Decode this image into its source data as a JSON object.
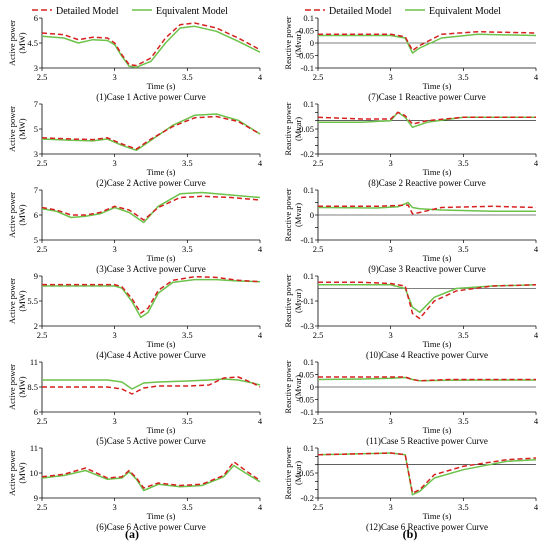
{
  "legend": {
    "detailed": "Detailed Model",
    "equivalent": "Equivalent Model",
    "detailed_color": "#d62020",
    "equivalent_color": "#6cc24a"
  },
  "columns": {
    "left": "(a)",
    "right": "(b)"
  },
  "chart_data": [
    {
      "type": "line",
      "caption": "(1)Case 1 Active power Curve",
      "ylabel": [
        "Active power",
        "(MW)"
      ],
      "xlabel": "Time (s)",
      "xlim": [
        2.5,
        4
      ],
      "xticks": [
        2.5,
        3,
        3.5,
        4
      ],
      "ylim": [
        3,
        6
      ],
      "yticks": [
        3,
        4.5,
        6
      ],
      "ytick_labels": [
        "3",
        "4.5",
        "6"
      ],
      "x": [
        2.5,
        2.65,
        2.75,
        2.85,
        2.95,
        3.0,
        3.05,
        3.1,
        3.15,
        3.25,
        3.35,
        3.45,
        3.55,
        3.7,
        3.85,
        4.0
      ],
      "series": [
        {
          "name": "Detailed Model",
          "values": [
            5.1,
            5.0,
            4.7,
            4.85,
            4.8,
            4.5,
            3.8,
            3.2,
            3.15,
            3.6,
            4.8,
            5.6,
            5.7,
            5.4,
            4.8,
            4.1
          ]
        },
        {
          "name": "Equivalent Model",
          "values": [
            4.9,
            4.8,
            4.5,
            4.7,
            4.65,
            4.4,
            3.7,
            3.1,
            3.05,
            3.4,
            4.5,
            5.4,
            5.5,
            5.2,
            4.6,
            3.95
          ]
        }
      ]
    },
    {
      "type": "line",
      "caption": "(2)Case 2 Active power Curve",
      "ylabel": [
        "Active power",
        "(MW)"
      ],
      "xlabel": "Time (s)",
      "xlim": [
        2.5,
        4
      ],
      "xticks": [
        2.5,
        3,
        3.5,
        4
      ],
      "ylim": [
        3,
        7
      ],
      "yticks": [
        3,
        5,
        7
      ],
      "ytick_labels": [
        "3",
        "5",
        "7"
      ],
      "x": [
        2.5,
        2.7,
        2.85,
        2.95,
        3.05,
        3.15,
        3.25,
        3.4,
        3.55,
        3.7,
        3.85,
        4.0
      ],
      "series": [
        {
          "name": "Detailed Model",
          "values": [
            4.3,
            4.2,
            4.15,
            4.3,
            3.8,
            3.4,
            4.2,
            5.2,
            5.9,
            6.0,
            5.6,
            4.6
          ]
        },
        {
          "name": "Equivalent Model",
          "values": [
            4.2,
            4.1,
            4.05,
            4.2,
            3.7,
            3.3,
            4.1,
            5.3,
            6.1,
            6.2,
            5.7,
            4.6
          ]
        }
      ]
    },
    {
      "type": "line",
      "caption": "(3)Case 3 Active power Curve",
      "ylabel": [
        "Active power",
        "(MW)"
      ],
      "xlabel": "Time (s)",
      "xlim": [
        2.5,
        4
      ],
      "xticks": [
        2.5,
        3,
        3.5,
        4
      ],
      "ylim": [
        5,
        7
      ],
      "yticks": [
        5,
        6,
        7
      ],
      "ytick_labels": [
        "5",
        "6",
        "7"
      ],
      "x": [
        2.5,
        2.6,
        2.7,
        2.8,
        2.9,
        3.0,
        3.1,
        3.2,
        3.3,
        3.45,
        3.6,
        3.8,
        4.0
      ],
      "series": [
        {
          "name": "Detailed Model",
          "values": [
            6.3,
            6.2,
            6.0,
            6.0,
            6.1,
            6.35,
            6.2,
            5.8,
            6.3,
            6.7,
            6.75,
            6.7,
            6.6
          ]
        },
        {
          "name": "Equivalent Model",
          "values": [
            6.25,
            6.15,
            5.9,
            5.95,
            6.05,
            6.3,
            6.1,
            5.7,
            6.35,
            6.85,
            6.9,
            6.8,
            6.7
          ]
        }
      ]
    },
    {
      "type": "line",
      "caption": "(4)Case 4 Active power Curve",
      "ylabel": [
        "Active power",
        "(MW)"
      ],
      "xlabel": "Time (s)",
      "xlim": [
        2.5,
        4
      ],
      "xticks": [
        2.5,
        3,
        3.5,
        4
      ],
      "ylim": [
        2,
        9
      ],
      "yticks": [
        2,
        5.5,
        9
      ],
      "ytick_labels": [
        "2",
        "5.5",
        "9"
      ],
      "x": [
        2.5,
        2.8,
        3.0,
        3.05,
        3.12,
        3.18,
        3.23,
        3.3,
        3.4,
        3.55,
        3.7,
        3.85,
        4.0
      ],
      "series": [
        {
          "name": "Detailed Model",
          "values": [
            7.8,
            7.8,
            7.8,
            7.5,
            5.8,
            3.8,
            4.5,
            7.0,
            8.4,
            8.9,
            8.8,
            8.4,
            8.2
          ]
        },
        {
          "name": "Equivalent Model",
          "values": [
            7.6,
            7.6,
            7.6,
            7.3,
            5.4,
            3.2,
            3.9,
            6.6,
            8.1,
            8.5,
            8.5,
            8.3,
            8.2
          ]
        }
      ]
    },
    {
      "type": "line",
      "caption": "(5)Case 5 Active power Curve",
      "ylabel": [
        "Active power",
        "(MW)"
      ],
      "xlabel": "Time (s)",
      "xlim": [
        2.5,
        4
      ],
      "xticks": [
        2.5,
        3,
        3.5,
        4
      ],
      "ylim": [
        6,
        11
      ],
      "yticks": [
        6,
        8.5,
        11
      ],
      "ytick_labels": [
        "6",
        "8.5",
        "11"
      ],
      "x": [
        2.5,
        2.75,
        2.95,
        3.05,
        3.12,
        3.2,
        3.3,
        3.5,
        3.65,
        3.75,
        3.85,
        3.95,
        4.0
      ],
      "series": [
        {
          "name": "Detailed Model",
          "values": [
            8.5,
            8.5,
            8.5,
            8.3,
            7.8,
            8.4,
            8.6,
            8.6,
            8.7,
            9.4,
            9.5,
            8.9,
            8.5
          ]
        },
        {
          "name": "Equivalent Model",
          "values": [
            9.2,
            9.2,
            9.2,
            9.0,
            8.3,
            8.9,
            9.0,
            9.1,
            9.2,
            9.3,
            9.2,
            8.9,
            8.7
          ]
        }
      ]
    },
    {
      "type": "line",
      "caption": "(6)Case 6 Active power Curve",
      "ylabel": [
        "Active power",
        "(MW)"
      ],
      "xlabel": "Time (s)",
      "xlim": [
        2.5,
        4
      ],
      "xticks": [
        2.5,
        3,
        3.5,
        4
      ],
      "ylim": [
        9,
        11
      ],
      "yticks": [
        9,
        10,
        11
      ],
      "ytick_labels": [
        "9",
        "10",
        "11"
      ],
      "x": [
        2.5,
        2.65,
        2.8,
        2.95,
        3.05,
        3.1,
        3.15,
        3.2,
        3.3,
        3.45,
        3.6,
        3.75,
        3.82,
        3.9,
        4.0
      ],
      "series": [
        {
          "name": "Detailed Model",
          "values": [
            9.85,
            9.95,
            10.2,
            9.8,
            9.85,
            10.1,
            9.8,
            9.4,
            9.6,
            9.5,
            9.55,
            9.9,
            10.45,
            10.1,
            9.7
          ]
        },
        {
          "name": "Equivalent Model",
          "values": [
            9.8,
            9.9,
            10.1,
            9.75,
            9.8,
            10.05,
            9.75,
            9.3,
            9.55,
            9.45,
            9.5,
            9.85,
            10.3,
            10.0,
            9.65
          ]
        }
      ]
    },
    {
      "type": "line",
      "caption": "(7)Case 1 Reactive power Curve",
      "ylabel": [
        "Reactive power",
        "(Mvar)"
      ],
      "xlabel": "Time (s)",
      "xlim": [
        2.5,
        4
      ],
      "xticks": [
        2.5,
        3,
        3.5,
        4
      ],
      "ylim": [
        -0.1,
        0.1
      ],
      "yticks": [
        -0.1,
        -0.05,
        0,
        0.05,
        0.1
      ],
      "ytick_labels": [
        "-0.1",
        "-0.05",
        "0",
        "0.05",
        "0.1"
      ],
      "x": [
        2.5,
        2.8,
        3.0,
        3.05,
        3.1,
        3.15,
        3.2,
        3.35,
        3.6,
        4.0
      ],
      "series": [
        {
          "name": "Detailed Model",
          "values": [
            0.035,
            0.035,
            0.035,
            0.03,
            0.025,
            -0.03,
            -0.01,
            0.035,
            0.045,
            0.04
          ]
        },
        {
          "name": "Equivalent Model",
          "values": [
            0.03,
            0.03,
            0.03,
            0.025,
            0.02,
            -0.04,
            -0.02,
            0.02,
            0.035,
            0.03
          ]
        }
      ]
    },
    {
      "type": "line",
      "caption": "(8)Case 2 Reactive power Curve",
      "ylabel": [
        "Reactive power",
        "(Mvar)"
      ],
      "xlabel": "Time (s)",
      "xlim": [
        2.5,
        4
      ],
      "xticks": [
        2.5,
        3,
        3.5,
        4
      ],
      "ylim": [
        -0.2,
        0.1
      ],
      "yticks": [
        -0.2,
        -0.15,
        -0.1,
        -0.05,
        0,
        0.05,
        0.1
      ],
      "ytick_labels": [
        "-0.2",
        "",
        "",
        "-0.05",
        "",
        "",
        "0.1"
      ],
      "x": [
        2.5,
        2.8,
        3.0,
        3.05,
        3.1,
        3.15,
        3.25,
        3.5,
        4.0
      ],
      "series": [
        {
          "name": "Detailed Model",
          "values": [
            0.02,
            0.01,
            0.01,
            0.05,
            0.03,
            -0.02,
            0.0,
            0.02,
            0.02
          ]
        },
        {
          "name": "Equivalent Model",
          "values": [
            -0.01,
            -0.01,
            0.0,
            0.05,
            0.02,
            -0.04,
            -0.01,
            0.02,
            0.02
          ]
        }
      ]
    },
    {
      "type": "line",
      "caption": "(9)Case 3 Reactive power Curve",
      "ylabel": [
        "Reactive power",
        "(Mvar)"
      ],
      "xlabel": "Time (s)",
      "xlim": [
        2.5,
        4
      ],
      "xticks": [
        2.5,
        3,
        3.5,
        4
      ],
      "ylim": [
        -0.1,
        0.1
      ],
      "yticks": [
        -0.1,
        -0.05,
        0,
        0.05,
        0.1
      ],
      "ytick_labels": [
        "-0.1",
        "",
        "0",
        "",
        "0.1"
      ],
      "x": [
        2.5,
        2.9,
        3.05,
        3.12,
        3.15,
        3.2,
        3.35,
        3.7,
        4.0
      ],
      "series": [
        {
          "name": "Detailed Model",
          "values": [
            0.035,
            0.035,
            0.038,
            0.04,
            0.005,
            0.01,
            0.03,
            0.035,
            0.03
          ]
        },
        {
          "name": "Equivalent Model",
          "values": [
            0.03,
            0.028,
            0.033,
            0.05,
            0.03,
            0.025,
            0.02,
            0.015,
            0.015
          ]
        }
      ]
    },
    {
      "type": "line",
      "caption": "(10)Case 4 Reactive power Curve",
      "ylabel": [
        "Reactive power",
        "(Mvar)"
      ],
      "xlabel": "Time (s)",
      "xlim": [
        2.5,
        4
      ],
      "xticks": [
        2.5,
        3,
        3.5,
        4
      ],
      "ylim": [
        -0.3,
        0.1
      ],
      "yticks": [
        -0.3,
        -0.1,
        0.1
      ],
      "ytick_labels": [
        "-0.3",
        "-0.1",
        "0.1"
      ],
      "x": [
        2.5,
        2.8,
        3.0,
        3.1,
        3.15,
        3.2,
        3.3,
        3.45,
        3.7,
        4.0
      ],
      "series": [
        {
          "name": "Detailed Model",
          "values": [
            0.05,
            0.05,
            0.04,
            0.02,
            -0.2,
            -0.24,
            -0.1,
            -0.02,
            0.02,
            0.03
          ]
        },
        {
          "name": "Equivalent Model",
          "values": [
            0.03,
            0.03,
            0.03,
            0.0,
            -0.15,
            -0.19,
            -0.07,
            0.0,
            0.02,
            0.03
          ]
        }
      ]
    },
    {
      "type": "line",
      "caption": "(11)Case 5 Reactive power Curve",
      "ylabel": [
        "Reactive power",
        "(Mvar)"
      ],
      "xlabel": "Time (s)",
      "xlim": [
        2.5,
        4
      ],
      "xticks": [
        2.5,
        3,
        3.5,
        4
      ],
      "ylim": [
        -0.1,
        0.1
      ],
      "yticks": [
        -0.1,
        -0.05,
        0,
        0.05,
        0.1
      ],
      "ytick_labels": [
        "-0.1",
        "-0.05",
        "0",
        "0.05",
        "0.1"
      ],
      "x": [
        2.5,
        2.8,
        3.0,
        3.1,
        3.15,
        3.2,
        3.4,
        3.7,
        4.0
      ],
      "series": [
        {
          "name": "Detailed Model",
          "values": [
            0.04,
            0.04,
            0.04,
            0.04,
            0.03,
            0.025,
            0.03,
            0.03,
            0.03
          ]
        },
        {
          "name": "Equivalent Model",
          "values": [
            0.03,
            0.032,
            0.035,
            0.038,
            0.03,
            0.025,
            0.027,
            0.028,
            0.028
          ]
        }
      ]
    },
    {
      "type": "line",
      "caption": "(12)Case 6 Reactive power Curve",
      "ylabel": [
        "Reactive power",
        "(Mvar)"
      ],
      "xlabel": "Time (s)",
      "xlim": [
        2.5,
        4
      ],
      "xticks": [
        2.5,
        3,
        3.5,
        4
      ],
      "ylim": [
        -0.2,
        0.1
      ],
      "yticks": [
        -0.2,
        -0.15,
        -0.1,
        -0.05,
        0,
        0.05,
        0.1
      ],
      "ytick_labels": [
        "-0.2",
        "",
        "",
        "-0.05",
        "",
        "",
        "0.1"
      ],
      "x": [
        2.5,
        2.8,
        3.0,
        3.1,
        3.15,
        3.2,
        3.3,
        3.5,
        3.8,
        4.0
      ],
      "series": [
        {
          "name": "Detailed Model",
          "values": [
            0.06,
            0.065,
            0.07,
            0.06,
            -0.17,
            -0.15,
            -0.06,
            -0.01,
            0.03,
            0.04
          ]
        },
        {
          "name": "Equivalent Model",
          "values": [
            0.06,
            0.065,
            0.07,
            0.06,
            -0.18,
            -0.16,
            -0.08,
            -0.03,
            0.02,
            0.03
          ]
        }
      ]
    }
  ]
}
